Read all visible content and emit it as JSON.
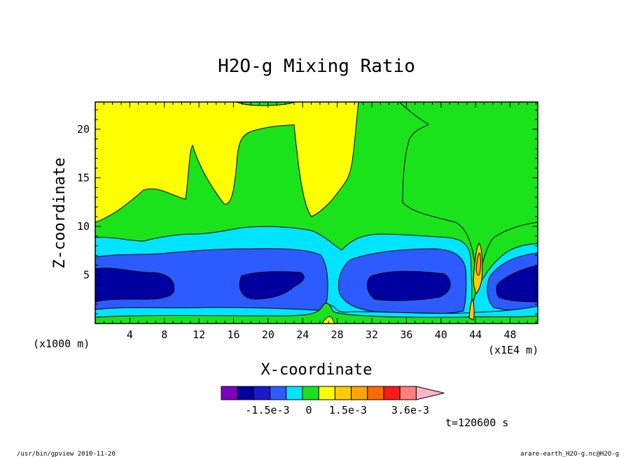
{
  "chart_data": {
    "type": "heatmap",
    "title": "H2O-g Mixing Ratio",
    "xlabel": "X-coordinate",
    "ylabel": "Z-coordinate",
    "x_unit_left": "(x1000 m)",
    "x_unit_right": "(x1E4 m)",
    "x_ticks": [
      "4",
      "8",
      "12",
      "16",
      "20",
      "24",
      "28",
      "32",
      "36",
      "40",
      "44",
      "48"
    ],
    "x_tick_values": [
      4,
      8,
      12,
      16,
      20,
      24,
      28,
      32,
      36,
      40,
      44,
      48
    ],
    "y_ticks": [
      "5",
      "10",
      "15",
      "20"
    ],
    "y_tick_values": [
      5,
      10,
      15,
      20
    ],
    "xlim": [
      0,
      51.2
    ],
    "ylim": [
      0,
      22.8
    ],
    "colorbar": {
      "colors": [
        "#7f00bf",
        "#0000a0",
        "#1a1acc",
        "#2c5bff",
        "#00e5ff",
        "#1be31b",
        "#ffff00",
        "#ffcc00",
        "#ffa500",
        "#ff6a00",
        "#ff1a1a",
        "#ff7f7f",
        "#ffb6c1"
      ],
      "labels": [
        "-1.5e-3",
        "0",
        "1.5e-3",
        "3.6e-3"
      ]
    },
    "time_label": "t=120600 s"
  },
  "footer": {
    "left": "/usr/bin/gpview  2010-11-20",
    "right": "arare-earth_H2O-g.nc@H2O-g"
  }
}
